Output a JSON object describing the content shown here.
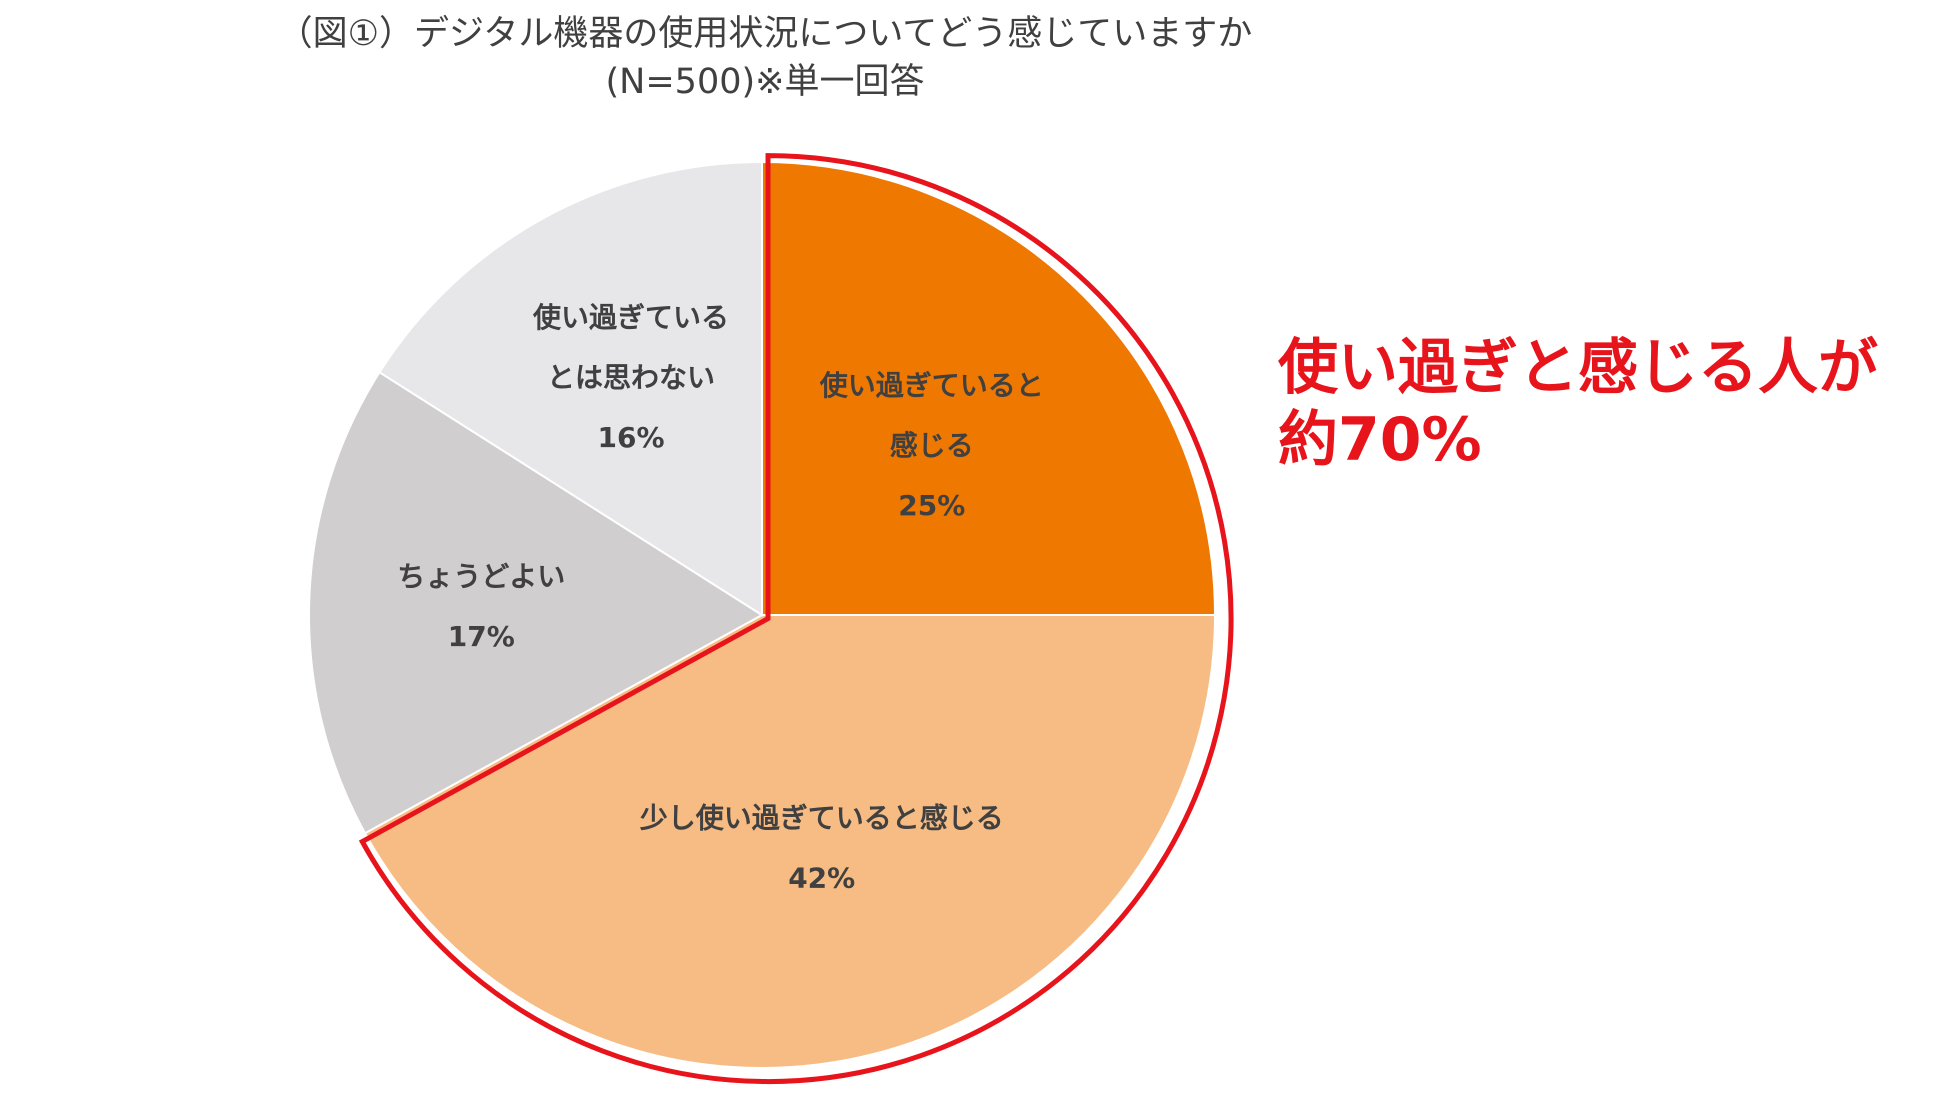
{
  "chart_data": {
    "type": "pie",
    "title": "（図①）デジタル機器の使用状況についてどう感じていますか",
    "subtitle": "(N=500)※単一回答",
    "slices": [
      {
        "label_lines": [
          "使い過ぎていると",
          "感じる"
        ],
        "value": 25,
        "value_label": "25%",
        "color": "#ee7800"
      },
      {
        "label_lines": [
          "少し使い過ぎていると感じる"
        ],
        "value": 42,
        "value_label": "42%",
        "color": "#f6bc84"
      },
      {
        "label_lines": [
          "ちょうどよい"
        ],
        "value": 17,
        "value_label": "17%",
        "color": "#d0cece"
      },
      {
        "label_lines": [
          "使い過ぎている",
          "とは思わない"
        ],
        "value": 16,
        "value_label": "16%",
        "color": "#e7e6e9"
      }
    ],
    "start": "12 o'clock",
    "direction": "clockwise",
    "highlight": {
      "slices": [
        0,
        1
      ],
      "outline_color": "#e8141b",
      "callout_lines": [
        "使い過ぎと感じる人が",
        "約70%"
      ]
    }
  }
}
